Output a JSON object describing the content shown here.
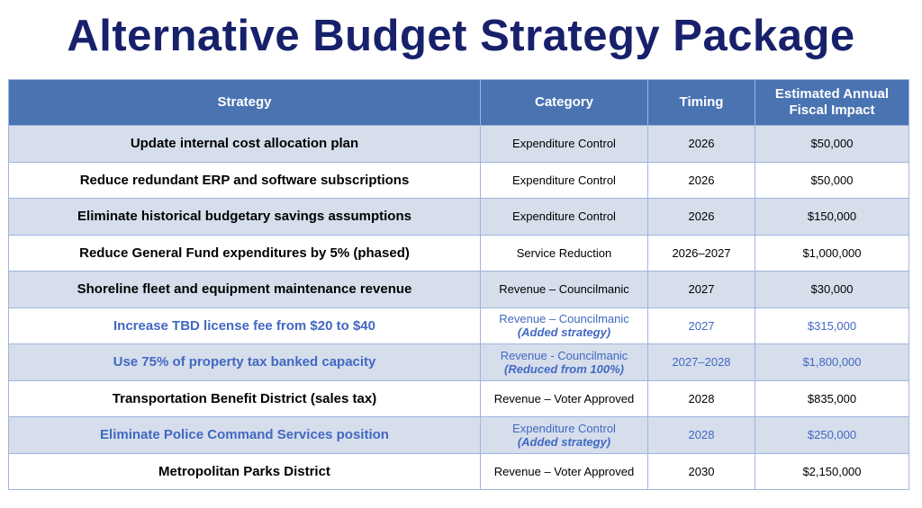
{
  "title": "Alternative Budget Strategy Package",
  "headers": [
    "Strategy",
    "Category",
    "Timing",
    "Estimated Annual Fiscal Impact"
  ],
  "rows": [
    {
      "strategy": "Update internal cost allocation plan",
      "category": "Expenditure Control",
      "note": null,
      "timing": "2026",
      "impact": "$50,000",
      "highlight": false
    },
    {
      "strategy": "Reduce redundant ERP and software subscriptions",
      "category": "Expenditure Control",
      "note": null,
      "timing": "2026",
      "impact": "$50,000",
      "highlight": false
    },
    {
      "strategy": "Eliminate historical budgetary savings assumptions",
      "category": "Expenditure Control",
      "note": null,
      "timing": "2026",
      "impact": "$150,000",
      "highlight": false
    },
    {
      "strategy": "Reduce General Fund expenditures by 5% (phased)",
      "category": "Service Reduction",
      "note": null,
      "timing": "2026–2027",
      "impact": "$1,000,000",
      "highlight": false
    },
    {
      "strategy": "Shoreline fleet and equipment maintenance revenue",
      "category": "Revenue – Councilmanic",
      "note": null,
      "timing": "2027",
      "impact": "$30,000",
      "highlight": false
    },
    {
      "strategy": "Increase TBD license fee from $20 to $40",
      "category": "Revenue – Councilmanic",
      "note": "(Added strategy)",
      "timing": "2027",
      "impact": "$315,000",
      "highlight": true
    },
    {
      "strategy": "Use 75% of property tax banked capacity",
      "category": "Revenue - Councilmanic",
      "note": "(Reduced from 100%)",
      "timing": "2027–2028",
      "impact": "$1,800,000",
      "highlight": true
    },
    {
      "strategy": "Transportation Benefit District (sales tax)",
      "category": "Revenue – Voter Approved",
      "note": null,
      "timing": "2028",
      "impact": "$835,000",
      "highlight": false
    },
    {
      "strategy": "Eliminate Police Command Services position",
      "category": "Expenditure Control",
      "note": "(Added strategy)",
      "timing": "2028",
      "impact": "$250,000",
      "highlight": true
    },
    {
      "strategy": "Metropolitan Parks District",
      "category": "Revenue – Voter Approved",
      "note": null,
      "timing": "2030",
      "impact": "$2,150,000",
      "highlight": false
    }
  ],
  "colors": {
    "title": "#17216b",
    "header_bg": "#4a73b2",
    "shade_bg": "#d6deec",
    "highlight_text": "#4268c2"
  }
}
